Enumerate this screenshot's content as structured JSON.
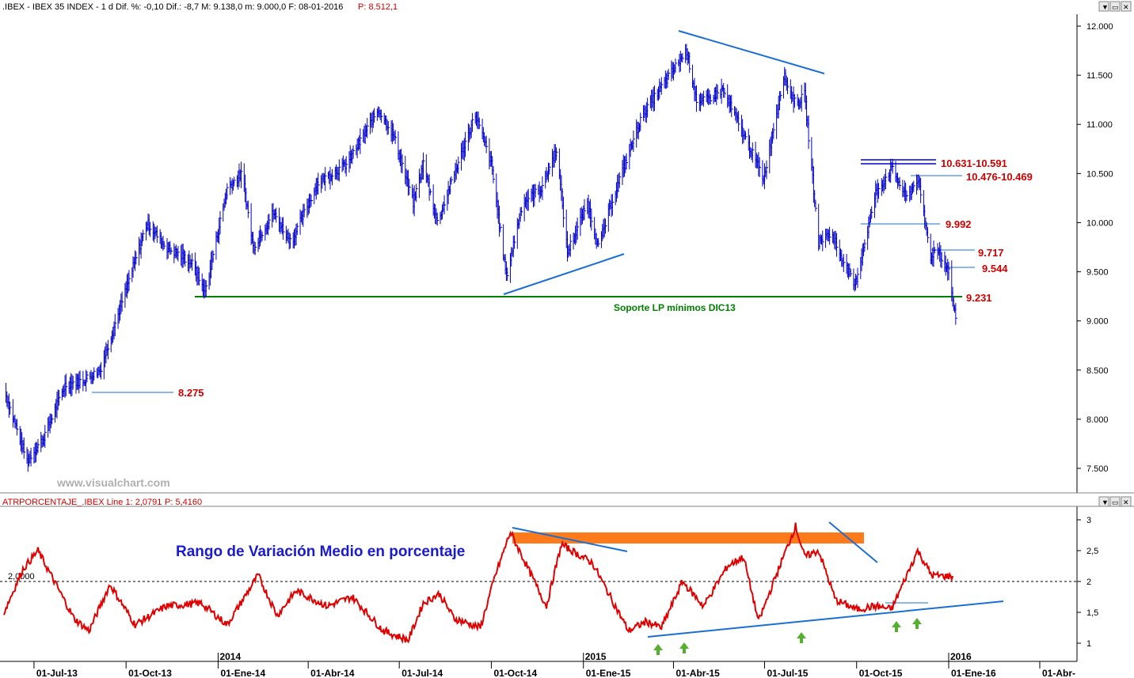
{
  "header": {
    "main_info": ".IBEX - IBEX 35 INDEX - 1 d Dif. %: -0,10 Dif.: -8,7 M: 9.138,0 m: 9.000,0 F: 08-01-2016",
    "main_price": "P: 8.512,1",
    "indicator_info": "ATRPORCENTAJE_.IBEX Line 1: 2,0791",
    "indicator_price": "P: 5,4160"
  },
  "window_buttons": [
    "▼",
    "▭",
    "✕"
  ],
  "watermark": "www.visualchart.com",
  "colors": {
    "price": "#0000cc",
    "indicator": "#e00000",
    "support": "#008000",
    "trendline": "#1a6fd0",
    "levels": "#d00000",
    "zone": "#ff7a1a",
    "arrow": "#55b030"
  },
  "chart_data": [
    {
      "type": "bar",
      "subtype": "ohlc",
      "title": "IBEX 35 INDEX",
      "y_ticks": [
        "12.000",
        "11.500",
        "11.000",
        "10.500",
        "10.000",
        "9.500",
        "9.000",
        "8.500",
        "8.000",
        "7.500"
      ],
      "y_tick_values": [
        12000,
        11500,
        11000,
        10500,
        10000,
        9500,
        9000,
        8500,
        8000,
        7500
      ],
      "ylim": [
        7300,
        12200
      ],
      "x_tick_labels": [
        "01-Jul-13",
        "01-Oct-13",
        "01-Ene-14",
        "01-Abr-14",
        "01-Jul-14",
        "01-Oct-14",
        "01-Ene-15",
        "01-Abr-15",
        "01-Jul-15",
        "01-Oct-15",
        "01-Ene-16",
        "01-Abr-"
      ],
      "year_labels": [
        "2014",
        "2015",
        "2016"
      ],
      "series": [
        {
          "name": "IBEX",
          "points": [
            [
              "2013-06-01",
              8300
            ],
            [
              "2013-06-24",
              7580
            ],
            [
              "2013-07-10",
              7800
            ],
            [
              "2013-08-01",
              8350
            ],
            [
              "2013-08-20",
              8400
            ],
            [
              "2013-09-05",
              8500
            ],
            [
              "2013-10-05",
              9450
            ],
            [
              "2013-10-22",
              10000
            ],
            [
              "2013-11-10",
              9750
            ],
            [
              "2013-12-05",
              9600
            ],
            [
              "2013-12-19",
              9300
            ],
            [
              "2014-01-10",
              10350
            ],
            [
              "2014-01-25",
              10500
            ],
            [
              "2014-02-05",
              9750
            ],
            [
              "2014-02-25",
              10100
            ],
            [
              "2014-03-15",
              9800
            ],
            [
              "2014-04-10",
              10400
            ],
            [
              "2014-05-10",
              10600
            ],
            [
              "2014-06-10",
              11150
            ],
            [
              "2014-06-25",
              10900
            ],
            [
              "2014-07-15",
              10200
            ],
            [
              "2014-07-25",
              10600
            ],
            [
              "2014-08-08",
              10000
            ],
            [
              "2014-09-01",
              10700
            ],
            [
              "2014-09-15",
              11100
            ],
            [
              "2014-10-01",
              10600
            ],
            [
              "2014-10-16",
              9450
            ],
            [
              "2014-11-01",
              10200
            ],
            [
              "2014-11-20",
              10350
            ],
            [
              "2014-12-05",
              10750
            ],
            [
              "2014-12-16",
              9700
            ],
            [
              "2015-01-05",
              10200
            ],
            [
              "2015-01-16",
              9750
            ],
            [
              "2015-02-01",
              10300
            ],
            [
              "2015-03-01",
              11100
            ],
            [
              "2015-04-14",
              11750
            ],
            [
              "2015-04-25",
              11200
            ],
            [
              "2015-05-20",
              11350
            ],
            [
              "2015-06-10",
              10900
            ],
            [
              "2015-06-30",
              10450
            ],
            [
              "2015-07-05",
              10700
            ],
            [
              "2015-07-20",
              11500
            ],
            [
              "2015-08-01",
              11200
            ],
            [
              "2015-08-10",
              11300
            ],
            [
              "2015-08-24",
              9800
            ],
            [
              "2015-09-05",
              9900
            ],
            [
              "2015-09-29",
              9350
            ],
            [
              "2015-10-20",
              10300
            ],
            [
              "2015-11-05",
              10550
            ],
            [
              "2015-11-20",
              10250
            ],
            [
              "2015-12-01",
              10450
            ],
            [
              "2015-12-14",
              9650
            ],
            [
              "2015-12-20",
              9750
            ],
            [
              "2016-01-01",
              9500
            ],
            [
              "2016-01-08",
              9000
            ]
          ]
        }
      ],
      "levels": [
        {
          "label": "10.631-10.591",
          "value": 10631
        },
        {
          "label": "10.476-10.469",
          "value": 10476
        },
        {
          "label": "9.992",
          "value": 9992
        },
        {
          "label": "9.717",
          "value": 9717
        },
        {
          "label": "9.544",
          "value": 9544
        },
        {
          "label": "9.231",
          "value": 9231
        },
        {
          "label": "8.275",
          "value": 8275
        }
      ],
      "annotations": [
        "Soporte LP mínimos DIC13"
      ]
    },
    {
      "type": "line",
      "title": "Rango de Variación Medio en porcentaje",
      "y_ticks": [
        "3",
        "2,5",
        "2",
        "1,5",
        "1"
      ],
      "y_tick_values": [
        3,
        2.5,
        2,
        1.5,
        1
      ],
      "ylim": [
        0.7,
        3.2
      ],
      "reference_label": "2,0000",
      "reference_value": 2.0,
      "series": [
        {
          "name": "ATRPORCENTAJE_.IBEX",
          "points": [
            [
              "2013-06-01",
              1.5
            ],
            [
              "2013-06-20",
              2.2
            ],
            [
              "2013-07-05",
              2.5
            ],
            [
              "2013-08-10",
              1.4
            ],
            [
              "2013-08-25",
              1.2
            ],
            [
              "2013-09-15",
              1.95
            ],
            [
              "2013-10-10",
              1.3
            ],
            [
              "2013-11-10",
              1.6
            ],
            [
              "2013-12-15",
              1.65
            ],
            [
              "2014-01-10",
              1.3
            ],
            [
              "2014-02-10",
              2.1
            ],
            [
              "2014-03-01",
              1.45
            ],
            [
              "2014-03-20",
              1.85
            ],
            [
              "2014-04-20",
              1.6
            ],
            [
              "2014-05-15",
              1.75
            ],
            [
              "2014-06-15",
              1.2
            ],
            [
              "2014-07-10",
              1.05
            ],
            [
              "2014-07-25",
              1.65
            ],
            [
              "2014-08-10",
              1.8
            ],
            [
              "2014-08-25",
              1.4
            ],
            [
              "2014-09-20",
              1.25
            ],
            [
              "2014-10-05",
              2.1
            ],
            [
              "2014-10-20",
              2.8
            ],
            [
              "2014-11-25",
              1.6
            ],
            [
              "2014-12-10",
              2.6
            ],
            [
              "2015-01-10",
              2.3
            ],
            [
              "2015-02-15",
              1.2
            ],
            [
              "2015-03-05",
              1.35
            ],
            [
              "2015-03-20",
              1.25
            ],
            [
              "2015-04-10",
              2.0
            ],
            [
              "2015-05-01",
              1.6
            ],
            [
              "2015-05-25",
              2.25
            ],
            [
              "2015-06-10",
              2.4
            ],
            [
              "2015-06-25",
              1.35
            ],
            [
              "2015-07-15",
              2.2
            ],
            [
              "2015-08-01",
              2.9
            ],
            [
              "2015-08-10",
              2.4
            ],
            [
              "2015-08-24",
              2.5
            ],
            [
              "2015-09-10",
              1.7
            ],
            [
              "2015-10-01",
              1.55
            ],
            [
              "2015-10-20",
              1.6
            ],
            [
              "2015-11-05",
              1.55
            ],
            [
              "2015-12-01",
              2.5
            ],
            [
              "2015-12-15",
              2.1
            ],
            [
              "2016-01-05",
              2.08
            ]
          ]
        }
      ]
    }
  ]
}
